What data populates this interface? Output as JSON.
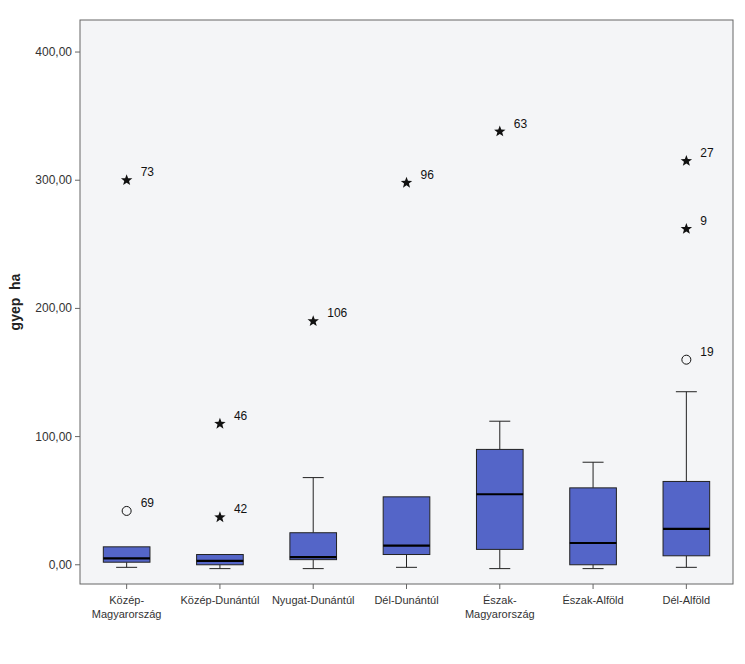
{
  "chart_data": {
    "type": "box",
    "y_label": "gyep  ha",
    "categories": [
      "Közép-\nMagyarország",
      "Közép-Dunántúl",
      "Nyugat-Dunántúl",
      "Dél-Dunántúl",
      "Észak-\nMagyarország",
      "Észak-Alföld",
      "Dél-Alföld"
    ],
    "boxes": [
      {
        "q1": 2,
        "median": 5,
        "q3": 14,
        "whislo": -2,
        "whishi": null
      },
      {
        "q1": 0,
        "median": 3,
        "q3": 8,
        "whislo": -3,
        "whishi": null
      },
      {
        "q1": 4,
        "median": 6,
        "q3": 25,
        "whislo": -3,
        "whishi": 68
      },
      {
        "q1": 8,
        "median": 15,
        "q3": 53,
        "whislo": -2,
        "whishi": 53
      },
      {
        "q1": 12,
        "median": 55,
        "q3": 90,
        "whislo": -3,
        "whishi": 112
      },
      {
        "q1": 0,
        "median": 17,
        "q3": 60,
        "whislo": -3,
        "whishi": 80
      },
      {
        "q1": 7,
        "median": 28,
        "q3": 65,
        "whislo": -2,
        "whishi": 135
      }
    ],
    "outliers": [
      {
        "category": "Közép-\nMagyarország",
        "value": 42,
        "label": "69",
        "marker": "circle"
      },
      {
        "category": "Dél-Alföld",
        "value": 160,
        "label": "19",
        "marker": "circle"
      },
      {
        "category": "Közép-\nMagyarország",
        "value": 300,
        "label": "73",
        "marker": "star"
      },
      {
        "category": "Közép-Dunántúl",
        "value": 110,
        "label": "46",
        "marker": "star"
      },
      {
        "category": "Közép-Dunántúl",
        "value": 37,
        "label": "42",
        "marker": "star"
      },
      {
        "category": "Nyugat-Dunántúl",
        "value": 190,
        "label": "106",
        "marker": "star"
      },
      {
        "category": "Dél-Dunántúl",
        "value": 298,
        "label": "96",
        "marker": "star"
      },
      {
        "category": "Észak-\nMagyarország",
        "value": 338,
        "label": "63",
        "marker": "star"
      },
      {
        "category": "Dél-Alföld",
        "value": 262,
        "label": "9",
        "marker": "star"
      },
      {
        "category": "Dél-Alföld",
        "value": 315,
        "label": "27",
        "marker": "star"
      }
    ],
    "color": "#5465c8",
    "ylim": [
      -15,
      425
    ],
    "yticks": [
      {
        "value": 0,
        "label": "0,00"
      },
      {
        "value": 100,
        "label": "100,00"
      },
      {
        "value": 200,
        "label": "200,00"
      },
      {
        "value": 300,
        "label": "300,00"
      },
      {
        "value": 400,
        "label": "400,00"
      }
    ],
    "grid": false
  }
}
